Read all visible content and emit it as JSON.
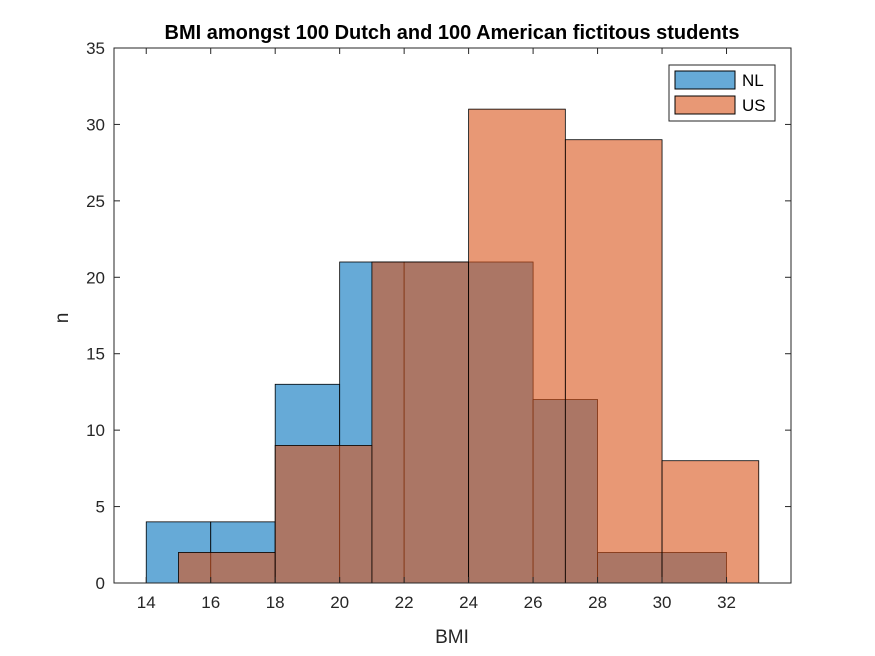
{
  "chart_data": {
    "type": "bar",
    "title": "BMI amongst 100 Dutch and 100 American fictitous students",
    "xlabel": "BMI",
    "ylabel": "n",
    "xlim": [
      13,
      34
    ],
    "ylim": [
      0,
      35
    ],
    "xticks": [
      14,
      16,
      18,
      20,
      22,
      24,
      26,
      28,
      30,
      32
    ],
    "yticks": [
      0,
      5,
      10,
      15,
      20,
      25,
      30,
      35
    ],
    "grid": false,
    "legend": "top-right",
    "histogram": true,
    "overlay_opacity": 0.6,
    "series": [
      {
        "name": "NL",
        "color": "#0072BD",
        "bin_edges": [
          14,
          16,
          18,
          20,
          22,
          24,
          26,
          28,
          30,
          32
        ],
        "bins": [
          {
            "x0": 14,
            "x1": 16,
            "value": 4
          },
          {
            "x0": 16,
            "x1": 18,
            "value": 4
          },
          {
            "x0": 18,
            "x1": 20,
            "value": 13
          },
          {
            "x0": 20,
            "x1": 22,
            "value": 21
          },
          {
            "x0": 22,
            "x1": 24,
            "value": 21
          },
          {
            "x0": 24,
            "x1": 26,
            "value": 21
          },
          {
            "x0": 26,
            "x1": 28,
            "value": 12
          },
          {
            "x0": 28,
            "x1": 30,
            "value": 2
          },
          {
            "x0": 30,
            "x1": 32,
            "value": 2
          }
        ]
      },
      {
        "name": "US",
        "color": "#D95319",
        "bin_edges": [
          15,
          18,
          21,
          24,
          27,
          30,
          33
        ],
        "bins": [
          {
            "x0": 15,
            "x1": 18,
            "value": 2
          },
          {
            "x0": 18,
            "x1": 21,
            "value": 9
          },
          {
            "x0": 21,
            "x1": 24,
            "value": 21
          },
          {
            "x0": 24,
            "x1": 27,
            "value": 31
          },
          {
            "x0": 27,
            "x1": 30,
            "value": 29
          },
          {
            "x0": 30,
            "x1": 33,
            "value": 8
          }
        ]
      }
    ]
  }
}
